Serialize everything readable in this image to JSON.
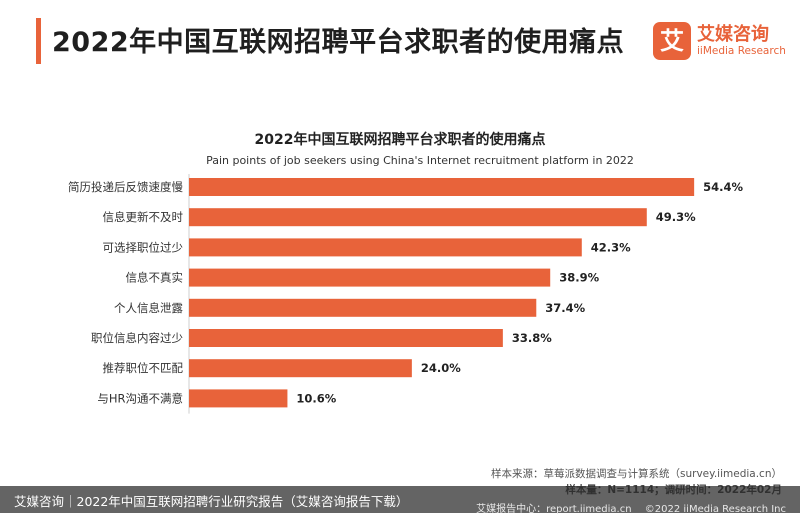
{
  "header": {
    "title": "2022年中国互联网招聘平台求职者的使用痛点",
    "accent_color": "#e8633a"
  },
  "logo": {
    "mark": "艾",
    "name_cn": "艾媒咨询",
    "name_en": "iiMedia Research",
    "color": "#e8633a"
  },
  "chart_data": {
    "type": "bar",
    "orientation": "horizontal",
    "title": "2022年中国互联网招聘平台求职者的使用痛点",
    "subtitle": "Pain points of job seekers using China's Internet recruitment platform in 2022",
    "categories": [
      "简历投递后反馈速度慢",
      "信息更新不及时",
      "可选择职位过少",
      "信息不真实",
      "个人信息泄露",
      "职位信息内容过少",
      "推荐职位不匹配",
      "与HR沟通不满意"
    ],
    "values": [
      54.4,
      49.3,
      42.3,
      38.9,
      37.4,
      33.8,
      24.0,
      10.6
    ],
    "value_labels": [
      "54.4%",
      "49.3%",
      "42.3%",
      "38.9%",
      "37.4%",
      "33.8%",
      "24.0%",
      "10.6%"
    ],
    "xlim": [
      0,
      56
    ],
    "grid": false,
    "bar_color": "#e8633a"
  },
  "source": {
    "line1": "样本来源：草莓派数据调查与计算系统（survey.iimedia.cn）",
    "line2": "样本量：N=1114；调研时间：2022年02月"
  },
  "footer": {
    "caption": "艾媒咨询｜2022年中国互联网招聘行业研究报告（艾媒咨询报告下载）",
    "center": "艾媒报告中心：report.iimedia.cn",
    "copyright": "©2022  iiMedia Research  Inc"
  }
}
